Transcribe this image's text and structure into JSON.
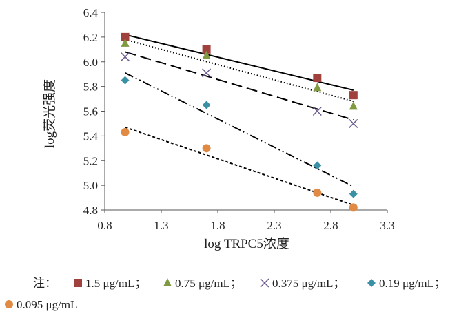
{
  "chart_data": {
    "type": "scatter",
    "xlabel": "log TRPC5浓度",
    "ylabel": "log荧光强度",
    "xlim": [
      0.8,
      3.3
    ],
    "ylim": [
      4.8,
      6.4
    ],
    "x_ticks": [
      "0.8",
      "1.3",
      "1.8",
      "2.3",
      "2.8",
      "3.3"
    ],
    "y_ticks": [
      "4.8",
      "5.0",
      "5.2",
      "5.4",
      "5.6",
      "5.8",
      "6.0",
      "6.2",
      "6.4"
    ],
    "x": [
      0.98,
      1.7,
      2.68,
      3.0
    ],
    "series": [
      {
        "name": "1.5 μg/mL；",
        "values": [
          6.2,
          6.1,
          5.87,
          5.73
        ],
        "marker": "square",
        "color": "#a0413d",
        "trend": [
          6.22,
          5.77
        ],
        "dash": ""
      },
      {
        "name": "0.75 μg/mL；",
        "values": [
          6.15,
          6.05,
          5.79,
          5.64
        ],
        "marker": "triangle",
        "color": "#7f9a41",
        "trend": [
          6.18,
          5.68
        ],
        "dash": "1.5,3"
      },
      {
        "name": "0.375 μg/mL；",
        "values": [
          6.04,
          5.91,
          5.6,
          5.5
        ],
        "marker": "cross",
        "color": "#6b5a91",
        "trend": [
          6.08,
          5.53
        ],
        "dash": "16,7"
      },
      {
        "name": "0.19 μg/mL；",
        "values": [
          5.85,
          5.65,
          5.16,
          4.93
        ],
        "marker": "diamond",
        "color": "#3a91a6",
        "trend": [
          5.91,
          4.99
        ],
        "dash": "13,4,2,4,2,4"
      },
      {
        "name": "0.095 μg/mL",
        "values": [
          5.43,
          5.3,
          4.94,
          4.82
        ],
        "marker": "circle",
        "color": "#e08a44",
        "trend": [
          5.47,
          4.84
        ],
        "dash": "4,3"
      }
    ],
    "legend_prefix": "注：",
    "grid": false,
    "legend_position": "bottom"
  }
}
